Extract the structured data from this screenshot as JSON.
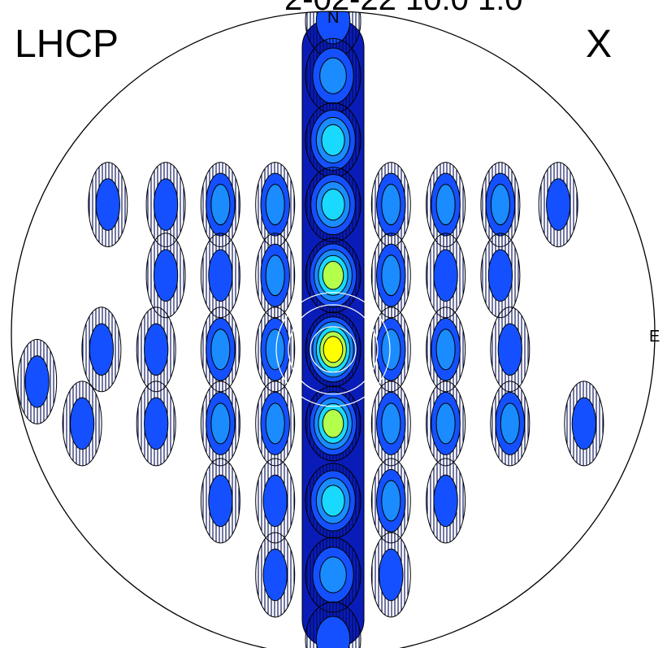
{
  "chart_data": {
    "type": "heatmap",
    "projection": "polar-azimuthal",
    "polarization_label": "LHCP",
    "component_label": "X",
    "top_label_partial": "2-02-22 10:0 1:0",
    "direction_labels": {
      "north": "N",
      "east": "E"
    },
    "grid": false,
    "legend": false,
    "contour_levels": 6,
    "colors": {
      "levels": [
        "#0a1cb8",
        "#1450ff",
        "#1a8cff",
        "#1ad9ff",
        "#b4ff4c",
        "#ffff00"
      ],
      "contour_line": "#000000",
      "outline": "#000000",
      "overlay_rings": "#ffffff",
      "background": "#ffffff"
    },
    "peak": {
      "azimuth_from_north_deg": 180,
      "zenith_offset": 0.05,
      "level": 6
    },
    "lobes": [
      {
        "u": 0.0,
        "v": 0.97,
        "level": 2
      },
      {
        "u": 0.0,
        "v": 0.8,
        "level": 3
      },
      {
        "u": 0.0,
        "v": 0.6,
        "level": 4
      },
      {
        "u": 0.0,
        "v": 0.4,
        "level": 4
      },
      {
        "u": 0.0,
        "v": 0.18,
        "level": 5
      },
      {
        "u": 0.0,
        "v": -0.05,
        "level": 6
      },
      {
        "u": 0.0,
        "v": -0.28,
        "level": 5
      },
      {
        "u": 0.0,
        "v": -0.52,
        "level": 4
      },
      {
        "u": 0.0,
        "v": -0.75,
        "level": 3
      },
      {
        "u": 0.0,
        "v": -0.95,
        "level": 2
      },
      {
        "u": -0.18,
        "v": 0.4,
        "level": 3
      },
      {
        "u": 0.18,
        "v": 0.4,
        "level": 3
      },
      {
        "u": -0.35,
        "v": 0.4,
        "level": 3
      },
      {
        "u": 0.35,
        "v": 0.4,
        "level": 3
      },
      {
        "u": -0.52,
        "v": 0.4,
        "level": 2
      },
      {
        "u": 0.52,
        "v": 0.4,
        "level": 3
      },
      {
        "u": -0.7,
        "v": 0.4,
        "level": 2
      },
      {
        "u": 0.7,
        "v": 0.4,
        "level": 2
      },
      {
        "u": -0.18,
        "v": 0.18,
        "level": 3
      },
      {
        "u": 0.18,
        "v": 0.18,
        "level": 3
      },
      {
        "u": -0.35,
        "v": 0.18,
        "level": 2
      },
      {
        "u": 0.35,
        "v": 0.18,
        "level": 2
      },
      {
        "u": -0.52,
        "v": 0.18,
        "level": 2
      },
      {
        "u": 0.52,
        "v": 0.18,
        "level": 2
      },
      {
        "u": -0.18,
        "v": -0.05,
        "level": 3
      },
      {
        "u": 0.18,
        "v": -0.05,
        "level": 3
      },
      {
        "u": -0.35,
        "v": -0.05,
        "level": 3
      },
      {
        "u": 0.35,
        "v": -0.05,
        "level": 3
      },
      {
        "u": -0.55,
        "v": -0.05,
        "level": 2
      },
      {
        "u": 0.55,
        "v": -0.05,
        "level": 2
      },
      {
        "u": -0.72,
        "v": -0.05,
        "level": 2
      },
      {
        "u": -0.18,
        "v": -0.28,
        "level": 3
      },
      {
        "u": 0.18,
        "v": -0.28,
        "level": 3
      },
      {
        "u": -0.35,
        "v": -0.28,
        "level": 3
      },
      {
        "u": 0.35,
        "v": -0.28,
        "level": 3
      },
      {
        "u": -0.55,
        "v": -0.28,
        "level": 2
      },
      {
        "u": 0.55,
        "v": -0.28,
        "level": 3
      },
      {
        "u": -0.78,
        "v": -0.28,
        "level": 2
      },
      {
        "u": 0.78,
        "v": -0.28,
        "level": 2
      },
      {
        "u": -0.92,
        "v": -0.15,
        "level": 2
      },
      {
        "u": -0.18,
        "v": -0.52,
        "level": 2
      },
      {
        "u": 0.18,
        "v": -0.52,
        "level": 3
      },
      {
        "u": -0.35,
        "v": -0.52,
        "level": 2
      },
      {
        "u": 0.35,
        "v": -0.52,
        "level": 2
      },
      {
        "u": -0.18,
        "v": -0.75,
        "level": 2
      },
      {
        "u": 0.18,
        "v": -0.75,
        "level": 2
      }
    ]
  }
}
